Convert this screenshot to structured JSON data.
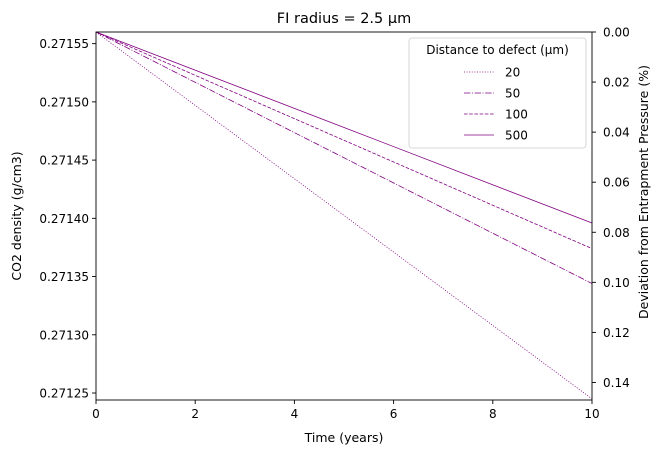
{
  "chart_data": {
    "type": "line",
    "title": "FI radius = 2.5 µm",
    "xlabel": "Time (years)",
    "ylabel": "CO2 density (g/cm3)",
    "y2label": "Deviation from Entrapment Pressure (%)",
    "xlim": [
      0,
      10
    ],
    "ylim": [
      0.271244,
      0.27156
    ],
    "y2lim_inverted": [
      0.0,
      0.147
    ],
    "x_ticks": [
      "0",
      "2",
      "4",
      "6",
      "8",
      "10"
    ],
    "x_tick_values": [
      0,
      2,
      4,
      6,
      8,
      10
    ],
    "y_ticks": [
      "0.27125",
      "0.27130",
      "0.27135",
      "0.27140",
      "0.27145",
      "0.27150",
      "0.27155"
    ],
    "y_tick_values": [
      0.27125,
      0.2713,
      0.27135,
      0.2714,
      0.27145,
      0.2715,
      0.27155
    ],
    "y2_ticks": [
      "0.00",
      "0.02",
      "0.04",
      "0.06",
      "0.08",
      "0.10",
      "0.12",
      "0.14"
    ],
    "y2_tick_values": [
      0.0,
      0.02,
      0.04,
      0.06,
      0.08,
      0.1,
      0.12,
      0.14
    ],
    "grid": false,
    "legend": {
      "title": "Distance to defect (µm)",
      "placement": "top-right"
    },
    "color": "#800080",
    "series": [
      {
        "name": "20",
        "dash": "dotted",
        "x": [
          0,
          10
        ],
        "y": [
          0.27156,
          0.271245
        ]
      },
      {
        "name": "50",
        "dash": "dashdot",
        "x": [
          0,
          10
        ],
        "y": [
          0.27156,
          0.271344
        ]
      },
      {
        "name": "100",
        "dash": "dashed",
        "x": [
          0,
          10
        ],
        "y": [
          0.27156,
          0.271374
        ]
      },
      {
        "name": "500",
        "dash": "solid",
        "x": [
          0,
          10
        ],
        "y": [
          0.27156,
          0.271396
        ]
      }
    ]
  }
}
